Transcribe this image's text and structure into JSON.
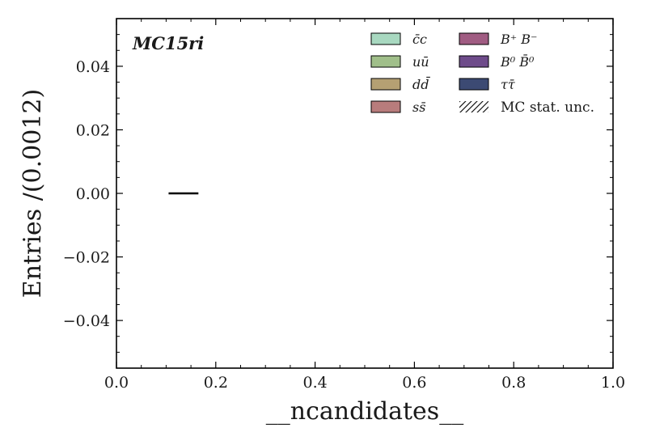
{
  "chart_data": {
    "type": "bar",
    "annotation": "MC15ri",
    "xlabel": "__ncandidates__",
    "ylabel": "Entries /(0.0012)",
    "xlim": [
      0.0,
      1.0
    ],
    "ylim": [
      -0.055,
      0.055
    ],
    "x_ticks": [
      "0.0",
      "0.2",
      "0.4",
      "0.6",
      "0.8",
      "1.0"
    ],
    "y_ticks": [
      "−0.04",
      "−0.02",
      "0.00",
      "0.02",
      "0.04"
    ],
    "y_tick_values": [
      -0.04,
      -0.02,
      0.0,
      0.02,
      0.04
    ],
    "x_tick_values": [
      0.0,
      0.2,
      0.4,
      0.6,
      0.8,
      1.0
    ],
    "series": [
      {
        "name": "c̄c",
        "values": [
          0
        ],
        "color": "#a8d8c0"
      },
      {
        "name": "uū",
        "values": [
          0
        ],
        "color": "#a0bf8a"
      },
      {
        "name": "dd̄",
        "values": [
          0
        ],
        "color": "#b5a073"
      },
      {
        "name": "ss̄",
        "values": [
          0
        ],
        "color": "#b87c7c"
      },
      {
        "name": "B⁺B⁻",
        "values": [
          0
        ],
        "color": "#a05c82"
      },
      {
        "name": "B⁰B̄⁰",
        "values": [
          0
        ],
        "color": "#6e4b8a"
      },
      {
        "name": "ττ̄",
        "values": [
          0
        ],
        "color": "#3c4a73"
      }
    ],
    "segment": {
      "x_start": 0.105,
      "x_end": 0.165,
      "y": 0.0
    },
    "legend": {
      "placement": "top-right",
      "columns": [
        [
          {
            "label": "c̄c",
            "color": "#a8d8c0",
            "math": true
          },
          {
            "label": "uū",
            "color": "#a0bf8a",
            "math": true
          },
          {
            "label": "dd̄",
            "color": "#b5a073",
            "math": true
          },
          {
            "label": "ss̄",
            "color": "#b87c7c",
            "math": true
          }
        ],
        [
          {
            "label": "B⁺ B⁻",
            "color": "#a05c82",
            "math": true
          },
          {
            "label": "B⁰ B̄⁰",
            "color": "#6e4b8a",
            "math": true
          },
          {
            "label": "ττ̄",
            "color": "#3c4a73",
            "math": true
          },
          {
            "label": "MC stat. unc.",
            "color": "hatch",
            "math": false
          }
        ]
      ]
    },
    "grid": false
  }
}
